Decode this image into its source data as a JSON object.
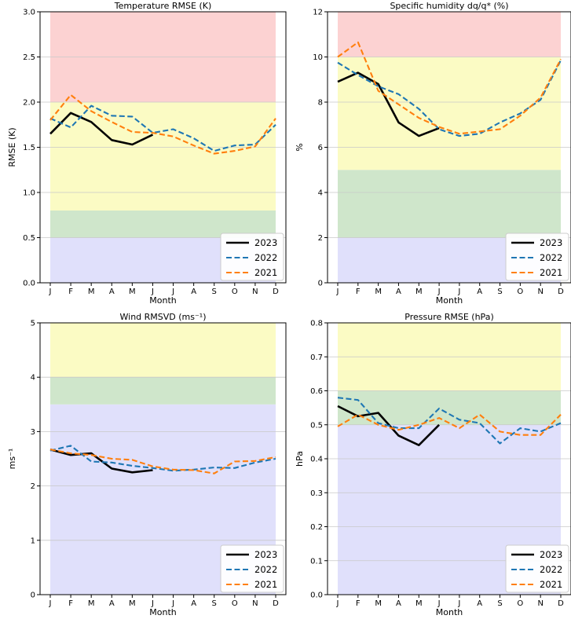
{
  "chart_data": [
    {
      "type": "line",
      "title": "Temperature RMSE (K)",
      "xlabel": "Month",
      "ylabel": "RMSE (K)",
      "categories": [
        "J",
        "F",
        "M",
        "A",
        "M",
        "J",
        "J",
        "A",
        "S",
        "O",
        "N",
        "D"
      ],
      "ylim": [
        0,
        3.0
      ],
      "yticks": [
        "0.0",
        "0.5",
        "1.0",
        "1.5",
        "2.0",
        "2.5",
        "3.0"
      ],
      "bands": [
        {
          "from": 0.0,
          "to": 0.5,
          "color": "#e0e0fb"
        },
        {
          "from": 0.5,
          "to": 0.8,
          "color": "#cfe6cb"
        },
        {
          "from": 0.8,
          "to": 2.0,
          "color": "#fbfbc4"
        },
        {
          "from": 2.0,
          "to": 3.0,
          "color": "#fcd2d2"
        }
      ],
      "legend_position": "lower-right",
      "series": [
        {
          "name": "2023",
          "color": "#000000",
          "dash": "solid",
          "values": [
            1.65,
            1.88,
            1.78,
            1.58,
            1.53,
            1.64,
            null,
            null,
            null,
            null,
            null,
            null
          ]
        },
        {
          "name": "2022",
          "color": "#1f77b4",
          "dash": "dashed",
          "values": [
            1.82,
            1.72,
            1.96,
            1.85,
            1.84,
            1.66,
            1.7,
            1.6,
            1.46,
            1.52,
            1.53,
            1.75
          ]
        },
        {
          "name": "2021",
          "color": "#ff7f0e",
          "dash": "dashed",
          "values": [
            1.8,
            2.08,
            1.9,
            1.78,
            1.67,
            1.66,
            1.62,
            1.52,
            1.43,
            1.46,
            1.51,
            1.82
          ]
        }
      ]
    },
    {
      "type": "line",
      "title": "Specific humidity dq/q* (%)",
      "xlabel": "Month",
      "ylabel": "%",
      "categories": [
        "J",
        "F",
        "M",
        "A",
        "M",
        "J",
        "J",
        "A",
        "S",
        "O",
        "N",
        "D"
      ],
      "ylim": [
        0,
        12
      ],
      "yticks": [
        "0",
        "2",
        "4",
        "6",
        "8",
        "10",
        "12"
      ],
      "bands": [
        {
          "from": 0,
          "to": 2,
          "color": "#e0e0fb"
        },
        {
          "from": 2,
          "to": 5,
          "color": "#cfe6cb"
        },
        {
          "from": 5,
          "to": 10,
          "color": "#fbfbc4"
        },
        {
          "from": 10,
          "to": 12,
          "color": "#fcd2d2"
        }
      ],
      "legend_position": "lower-right",
      "series": [
        {
          "name": "2023",
          "color": "#000000",
          "dash": "solid",
          "values": [
            8.9,
            9.3,
            8.8,
            7.1,
            6.5,
            6.85,
            null,
            null,
            null,
            null,
            null,
            null
          ]
        },
        {
          "name": "2022",
          "color": "#1f77b4",
          "dash": "dashed",
          "values": [
            9.75,
            9.2,
            8.7,
            8.35,
            7.7,
            6.8,
            6.5,
            6.6,
            7.1,
            7.5,
            8.1,
            9.85
          ]
        },
        {
          "name": "2021",
          "color": "#ff7f0e",
          "dash": "dashed",
          "values": [
            10.0,
            10.65,
            8.5,
            7.9,
            7.3,
            6.9,
            6.6,
            6.7,
            6.8,
            7.4,
            8.2,
            9.9
          ]
        }
      ]
    },
    {
      "type": "line",
      "title": "Wind RMSVD (ms⁻¹)",
      "xlabel": "Month",
      "ylabel": "ms⁻¹",
      "categories": [
        "J",
        "F",
        "M",
        "A",
        "M",
        "J",
        "J",
        "A",
        "S",
        "O",
        "N",
        "D"
      ],
      "ylim": [
        0,
        5
      ],
      "yticks": [
        "0",
        "1",
        "2",
        "3",
        "4",
        "5"
      ],
      "bands": [
        {
          "from": 0,
          "to": 3.5,
          "color": "#e0e0fb"
        },
        {
          "from": 3.5,
          "to": 4,
          "color": "#cfe6cb"
        },
        {
          "from": 4,
          "to": 5,
          "color": "#fbfbc4"
        }
      ],
      "legend_position": "lower-right",
      "series": [
        {
          "name": "2023",
          "color": "#000000",
          "dash": "solid",
          "values": [
            2.67,
            2.57,
            2.6,
            2.32,
            2.25,
            2.29,
            null,
            null,
            null,
            null,
            null,
            null
          ]
        },
        {
          "name": "2022",
          "color": "#1f77b4",
          "dash": "dashed",
          "values": [
            2.65,
            2.74,
            2.45,
            2.43,
            2.37,
            2.33,
            2.28,
            2.3,
            2.34,
            2.33,
            2.43,
            2.5
          ]
        },
        {
          "name": "2021",
          "color": "#ff7f0e",
          "dash": "dashed",
          "values": [
            2.67,
            2.6,
            2.57,
            2.5,
            2.48,
            2.36,
            2.3,
            2.29,
            2.23,
            2.45,
            2.46,
            2.53
          ]
        }
      ]
    },
    {
      "type": "line",
      "title": "Pressure RMSE (hPa)",
      "xlabel": "Month",
      "ylabel": "hPa",
      "categories": [
        "J",
        "F",
        "M",
        "A",
        "M",
        "J",
        "J",
        "A",
        "S",
        "O",
        "N",
        "D"
      ],
      "ylim": [
        0,
        0.8
      ],
      "yticks": [
        "0.0",
        "0.1",
        "0.2",
        "0.3",
        "0.4",
        "0.5",
        "0.6",
        "0.7",
        "0.8"
      ],
      "bands": [
        {
          "from": 0,
          "to": 0.5,
          "color": "#e0e0fb"
        },
        {
          "from": 0.5,
          "to": 0.6,
          "color": "#cfe6cb"
        },
        {
          "from": 0.6,
          "to": 0.8,
          "color": "#fbfbc4"
        }
      ],
      "legend_position": "lower-right",
      "series": [
        {
          "name": "2023",
          "color": "#000000",
          "dash": "solid",
          "values": [
            0.555,
            0.525,
            0.535,
            0.468,
            0.44,
            0.5,
            null,
            null,
            null,
            null,
            null,
            null
          ]
        },
        {
          "name": "2022",
          "color": "#1f77b4",
          "dash": "dashed",
          "values": [
            0.58,
            0.573,
            0.505,
            0.49,
            0.49,
            0.548,
            0.515,
            0.505,
            0.445,
            0.49,
            0.48,
            0.505
          ]
        },
        {
          "name": "2021",
          "color": "#ff7f0e",
          "dash": "dashed",
          "values": [
            0.495,
            0.53,
            0.5,
            0.485,
            0.5,
            0.52,
            0.49,
            0.53,
            0.48,
            0.47,
            0.47,
            0.53
          ]
        }
      ]
    }
  ]
}
